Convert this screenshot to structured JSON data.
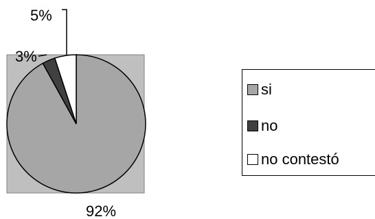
{
  "chart_data": {
    "type": "pie",
    "categories": [
      "si",
      "no",
      "no contestó"
    ],
    "values": [
      92,
      3,
      5
    ],
    "labels": [
      "92%",
      "3%",
      "5%"
    ],
    "colors": [
      "#a6a6a6",
      "#404040",
      "#ffffff"
    ],
    "plot_area_color": "#bfbfbf",
    "legend_position": "right"
  }
}
